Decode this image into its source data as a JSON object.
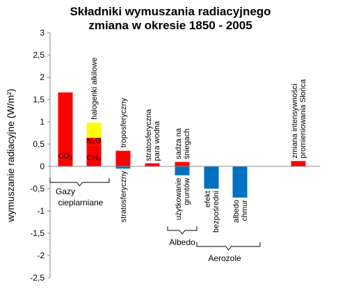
{
  "chart_data": {
    "type": "bar",
    "title": [
      "Składniki wymuszania radiacyjnego",
      "zmiana w okresie 1850 - 2005"
    ],
    "ylabel": "wymuszanie radiacyjne (W/m²)",
    "ylim": [
      -2.5,
      3
    ],
    "yticks": [
      "3",
      "2,5",
      "2",
      "1,5",
      "1",
      "0,5",
      "0",
      "-0,5",
      "-1",
      "-1,5",
      "-2",
      "-2,5"
    ],
    "colors": {
      "red": "#ff0000",
      "yellow": "#ffff00",
      "blue": "#0070c0"
    },
    "bars": [
      {
        "id": "co2",
        "value": 1.66,
        "color": "red",
        "text": "CO₂"
      },
      {
        "id": "halocarbons-n2o-ch4",
        "stack": [
          {
            "id": "ch4",
            "from": 0,
            "to": 0.48,
            "color": "red",
            "text": "CH₄"
          },
          {
            "id": "n2o",
            "from": 0.48,
            "to": 0.64,
            "color": "red",
            "text": "N₂O"
          },
          {
            "id": "halocarbons",
            "from": 0.64,
            "to": 0.98,
            "color": "yellow"
          }
        ],
        "label": "halogenki alkilowe"
      },
      {
        "id": "ozone",
        "stack": [
          {
            "id": "tropospheric",
            "from": 0,
            "to": 0.35,
            "color": "red"
          },
          {
            "id": "stratospheric",
            "from": -0.05,
            "to": 0,
            "color": "blue"
          }
        ],
        "label_above": "troposferyczny",
        "label_below": "stratosferyczny"
      },
      {
        "id": "stratospheric-water",
        "value": 0.07,
        "color": "red",
        "label": "stratosferyczna para wodna"
      },
      {
        "id": "albedo",
        "stack": [
          {
            "id": "black-carbon-snow",
            "from": 0,
            "to": 0.1,
            "color": "red"
          },
          {
            "id": "land-use",
            "from": -0.2,
            "to": 0,
            "color": "blue"
          }
        ],
        "label_above": "sadza na śniegach",
        "label_below": "użytkowanie gruntów"
      },
      {
        "id": "aerosol-direct",
        "value": -0.5,
        "color": "blue",
        "label_below": "efekt bezpośredni"
      },
      {
        "id": "aerosol-cloud",
        "value": -0.7,
        "color": "blue",
        "label_below": "albedo chmur"
      },
      {
        "id": "empty",
        "value": 0
      },
      {
        "id": "solar",
        "value": 0.12,
        "color": "red",
        "label": "zmiana intensywności promieniowania Słońca"
      }
    ],
    "groups": [
      {
        "id": "ghg",
        "label": [
          "Gazy",
          "cieplarniane"
        ]
      },
      {
        "id": "albedo",
        "label": [
          "Albedo"
        ]
      },
      {
        "id": "aerosols",
        "label": [
          "Aerozole"
        ]
      }
    ]
  }
}
